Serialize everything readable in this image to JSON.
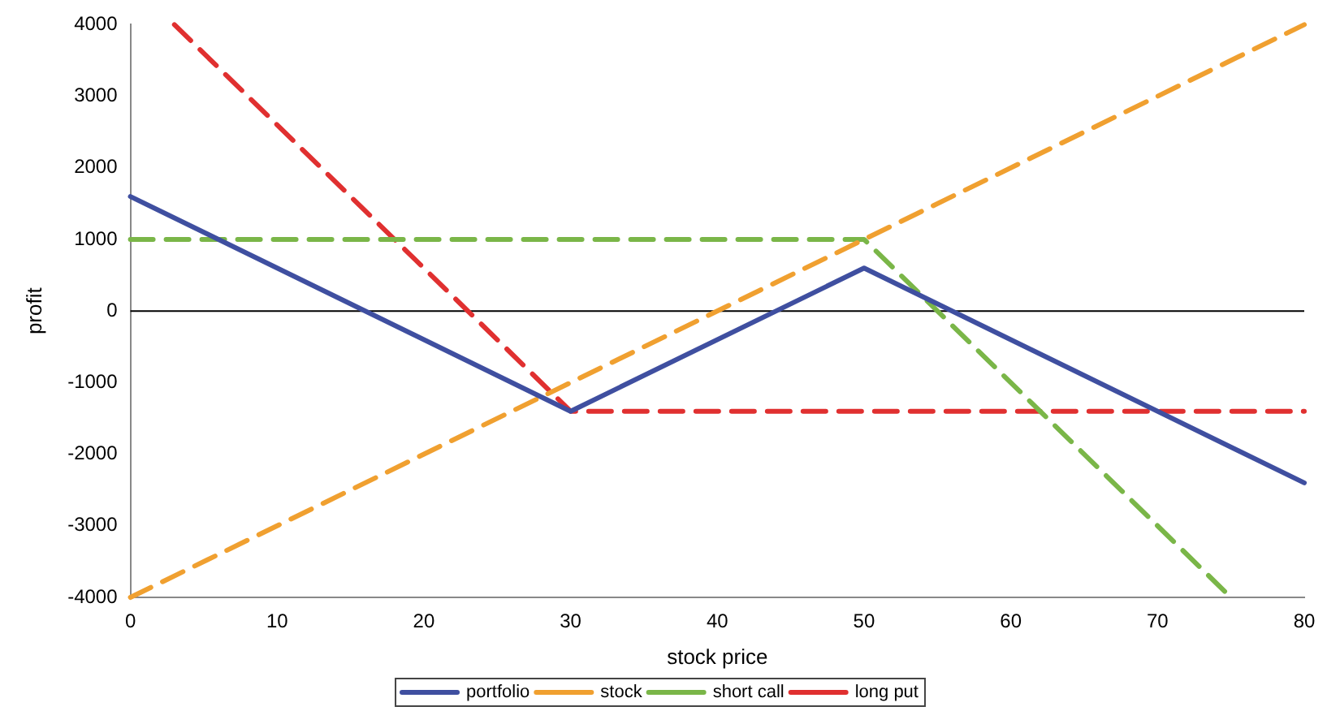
{
  "chart_data": {
    "type": "line",
    "xlabel": "stock price",
    "ylabel": "profit",
    "xlim": [
      0,
      80
    ],
    "xticks": [
      0,
      10,
      20,
      30,
      40,
      50,
      60,
      70,
      80
    ],
    "ylim": [
      -4000,
      4000
    ],
    "yticks": [
      -4000,
      -3000,
      -2000,
      -1000,
      0,
      1000,
      2000,
      3000,
      4000
    ],
    "grid": false,
    "legend": "bottom",
    "marker": "none",
    "ref_lines": [
      {
        "axis": "y",
        "value": 0,
        "color": "#000000",
        "line_style": "solid"
      }
    ],
    "series": [
      {
        "name": "portfolio",
        "color": "#3f4fa0",
        "line_style": "solid",
        "x": [
          0,
          30,
          50,
          80
        ],
        "values": [
          1600,
          -1400,
          600,
          -2400
        ]
      },
      {
        "name": "stock",
        "color": "#f0a030",
        "line_style": "dashed",
        "x": [
          0,
          80
        ],
        "values": [
          -4000,
          4000
        ]
      },
      {
        "name": "short call",
        "color": "#7ab648",
        "line_style": "dashed",
        "x": [
          0,
          50,
          75
        ],
        "values": [
          1000,
          1000,
          -4000
        ]
      },
      {
        "name": "long put",
        "color": "#e03030",
        "line_style": "dashed",
        "x": [
          3,
          30,
          80
        ],
        "values": [
          4000,
          -1400,
          -1400
        ]
      }
    ]
  }
}
